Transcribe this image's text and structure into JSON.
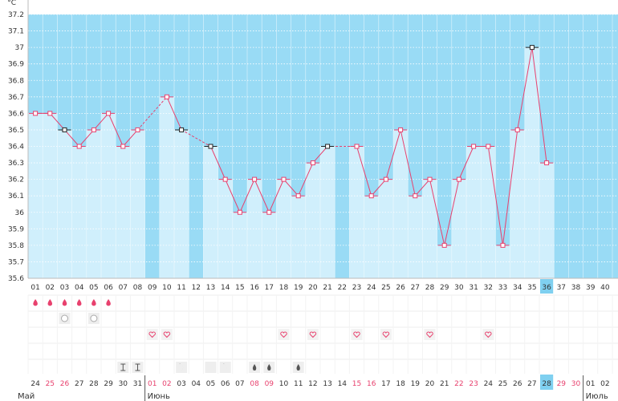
{
  "chart_data": {
    "type": "line",
    "title": "",
    "ylabel": "°C",
    "xlabel": "",
    "ylim": [
      35.6,
      37.2
    ],
    "y_ticks": [
      "35.6",
      "35.7",
      "35.8",
      "35.9",
      "36",
      "36.1",
      "36.2",
      "36.3",
      "36.4",
      "36.5",
      "36.6",
      "36.7",
      "36.8",
      "36.9",
      "37",
      "37.1",
      "37.2"
    ],
    "cycle_days": [
      "01",
      "02",
      "03",
      "04",
      "05",
      "06",
      "07",
      "08",
      "09",
      "10",
      "11",
      "12",
      "13",
      "14",
      "15",
      "16",
      "17",
      "18",
      "19",
      "20",
      "21",
      "22",
      "23",
      "24",
      "25",
      "26",
      "27",
      "28",
      "29",
      "30",
      "31",
      "32",
      "33",
      "34",
      "35",
      "36",
      "37",
      "38",
      "39",
      "40"
    ],
    "current_day_index": 35,
    "temperatures": [
      36.6,
      36.6,
      36.5,
      36.4,
      36.5,
      36.6,
      36.4,
      36.5,
      null,
      36.7,
      36.5,
      null,
      36.4,
      36.2,
      36.0,
      36.2,
      36.0,
      36.2,
      36.1,
      36.3,
      36.4,
      null,
      36.4,
      36.1,
      36.2,
      36.5,
      36.1,
      36.2,
      35.8,
      36.2,
      36.4,
      36.4,
      35.8,
      36.5,
      37.0,
      36.3,
      null,
      null,
      null,
      null
    ],
    "black_markers_days": [
      3,
      11,
      13,
      21,
      35
    ],
    "calendar_dates": [
      "24",
      "25",
      "26",
      "27",
      "28",
      "29",
      "30",
      "31",
      "01",
      "02",
      "03",
      "04",
      "05",
      "06",
      "07",
      "08",
      "09",
      "10",
      "11",
      "12",
      "13",
      "14",
      "15",
      "16",
      "17",
      "18",
      "19",
      "20",
      "21",
      "22",
      "23",
      "24",
      "25",
      "26",
      "27",
      "28",
      "29",
      "30",
      "01",
      "02"
    ],
    "red_date_indices": [
      1,
      2,
      8,
      9,
      15,
      16,
      22,
      23,
      29,
      30,
      36,
      37
    ],
    "current_date_index": 35,
    "months": [
      {
        "label": "Май",
        "start_index": 0
      },
      {
        "label": "Июнь",
        "start_index": 8
      },
      {
        "label": "Июль",
        "start_index": 38
      }
    ],
    "symbol_rows": [
      {
        "icon": "drop-icon",
        "days": [
          1,
          2,
          3,
          4,
          5,
          6
        ],
        "color": "#e8416e"
      },
      {
        "icon": "circle-icon",
        "days": [
          3,
          5
        ],
        "color": "#aaaaaa"
      },
      {
        "icon": "heart-icon",
        "days": [
          9,
          10,
          18,
          20,
          23,
          25,
          28,
          32
        ],
        "color": "#e8416e"
      },
      {
        "icon": "bar-icon",
        "days": [
          7,
          8
        ],
        "color": "#555555"
      },
      {
        "icon": "moon-icon",
        "days": [
          11,
          13,
          14
        ],
        "color": "#555555"
      },
      {
        "icon": "small-drop-icon",
        "days": [
          16,
          17,
          19
        ],
        "color": "#555555"
      }
    ],
    "colors": {
      "background": "#99dbf5",
      "column": "#d0effc",
      "line": "#e8416e",
      "weekend": "#e8416e",
      "highlight": "#7fd0f0"
    }
  }
}
